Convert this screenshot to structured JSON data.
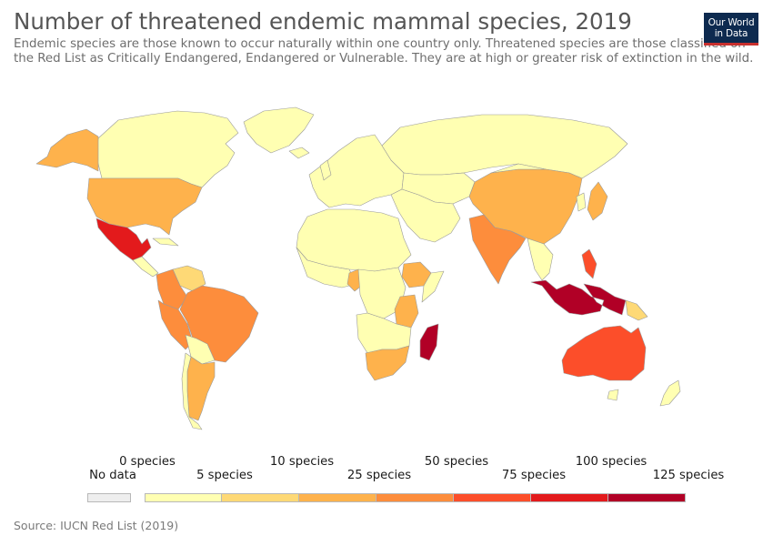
{
  "header": {
    "title": "Number of threatened endemic mammal species, 2019",
    "subtitle": "Endemic species are those known to occur naturally within one country only. Threatened species are those classified on the Red List as Critically Endangered, Endangered or Vulnerable. They are at high or greater risk of extinction in the wild.",
    "logo_line1": "Our World",
    "logo_line2": "in Data"
  },
  "colors": {
    "bins": [
      "#ffffb2",
      "#fed976",
      "#feb24c",
      "#fd8d3c",
      "#fc4e2a",
      "#e31a1c",
      "#b10026"
    ],
    "no_data": "#eeeeee",
    "border": "#9a9a9a"
  },
  "legend": {
    "no_data_label": "No data",
    "upper_labels": [
      "0 species",
      "10 species",
      "50 species",
      "100 species"
    ],
    "lower_labels": [
      "5 species",
      "25 species",
      "75 species",
      "125 species"
    ]
  },
  "map_data": {
    "regions": [
      {
        "name": "Canada",
        "bin": 0
      },
      {
        "name": "Greenland",
        "bin": 0
      },
      {
        "name": "Alaska",
        "bin": 2
      },
      {
        "name": "United States",
        "bin": 2
      },
      {
        "name": "Mexico",
        "bin": 5
      },
      {
        "name": "Colombia",
        "bin": 3
      },
      {
        "name": "Venezuela",
        "bin": 1
      },
      {
        "name": "Peru",
        "bin": 3
      },
      {
        "name": "Brazil",
        "bin": 3
      },
      {
        "name": "Argentina",
        "bin": 2
      },
      {
        "name": "Russia",
        "bin": 0
      },
      {
        "name": "China",
        "bin": 2
      },
      {
        "name": "India",
        "bin": 3
      },
      {
        "name": "Japan",
        "bin": 2
      },
      {
        "name": "Philippines",
        "bin": 4
      },
      {
        "name": "Indonesia",
        "bin": 6
      },
      {
        "name": "Papua New Guinea",
        "bin": 1
      },
      {
        "name": "Australia",
        "bin": 4
      },
      {
        "name": "Madagascar",
        "bin": 6
      },
      {
        "name": "Ethiopia",
        "bin": 2
      },
      {
        "name": "Tanzania",
        "bin": 2
      },
      {
        "name": "South Africa",
        "bin": 2
      },
      {
        "name": "Cameroon",
        "bin": 2
      }
    ]
  },
  "footer": {
    "source": "Source: IUCN Red List (2019)"
  }
}
